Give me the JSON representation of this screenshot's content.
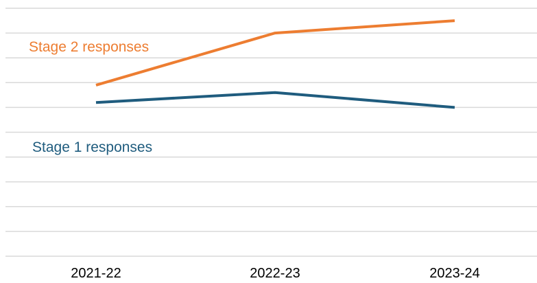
{
  "colors": {
    "stage2": "#ED7D31",
    "stage1": "#1F5C7E",
    "grid": "#D9D9D9"
  },
  "chart_data": {
    "type": "line",
    "title": "",
    "xlabel": "",
    "ylabel": "",
    "categories": [
      "2021-22",
      "2022-23",
      "2023-24"
    ],
    "ylim": [
      0,
      10
    ],
    "grid": true,
    "gridline_count": 11,
    "legend": "inline series labels",
    "series": [
      {
        "name": "Stage 2 responses",
        "values": [
          6.9,
          9.0,
          9.5
        ],
        "color": "#ED7D31"
      },
      {
        "name": "Stage 1 responses",
        "values": [
          6.2,
          6.6,
          6.0
        ],
        "color": "#1F5C7E"
      }
    ]
  }
}
